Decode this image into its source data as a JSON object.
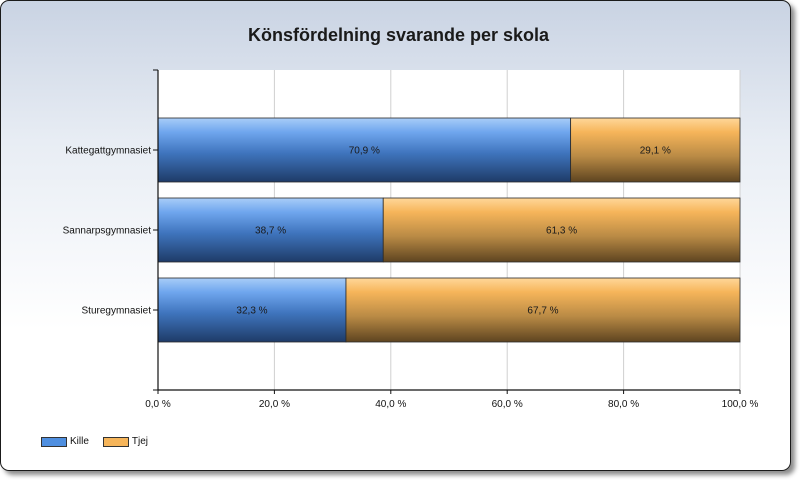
{
  "chart_data": {
    "type": "bar",
    "orientation": "horizontal",
    "stacked": true,
    "title": "Könsfördelning svarande per skola",
    "categories": [
      "Kattegattgymnasiet",
      "Sannarpsgymnasiet",
      "Sturegymnasiet"
    ],
    "series": [
      {
        "name": "Kille",
        "values": [
          70.9,
          38.7,
          32.3
        ],
        "labels": [
          "70,9 %",
          "38,7 %",
          "32,3 %"
        ],
        "color": "#5b9be6"
      },
      {
        "name": "Tjej",
        "values": [
          29.1,
          61.3,
          67.7
        ],
        "labels": [
          "29,1 %",
          "61,3 %",
          "67,7 %"
        ],
        "color": "#f6b55a"
      }
    ],
    "xlim": [
      0,
      100
    ],
    "x_ticks": [
      0,
      20,
      40,
      60,
      80,
      100
    ],
    "x_tick_labels": [
      "0,0 %",
      "20,0 %",
      "40,0 %",
      "60,0 %",
      "80,0 %",
      "100,0 %"
    ],
    "grid": true,
    "legend_position": "bottom-left"
  }
}
